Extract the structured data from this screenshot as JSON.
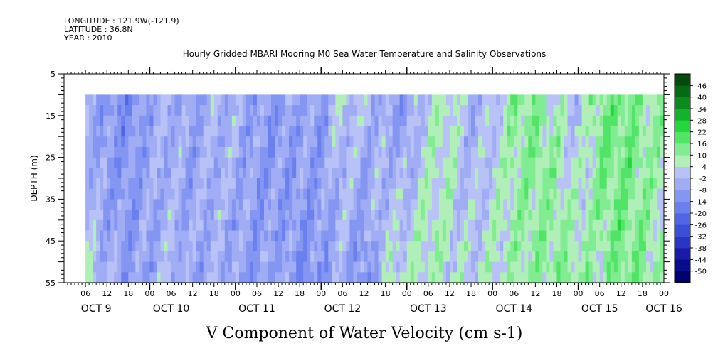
{
  "header": {
    "longitude": "LONGITUDE : 121.9W(-121.9)",
    "latitude": "LATITUDE : 36.8N",
    "year": "YEAR : 2010"
  },
  "chart_data": {
    "type": "heatmap",
    "title": "Hourly Gridded MBARI Mooring M0 Sea Water Temperature and Salinity Observations",
    "xlabel": "V Component of Water Velocity (cm s-1)",
    "ylabel": "DEPTH (m)",
    "x_range_hours": [
      0,
      168
    ],
    "data_start_hour": 6,
    "ylim": [
      5,
      55
    ],
    "y_ticks": [
      5,
      15,
      25,
      35,
      45,
      55
    ],
    "data_depth_range": [
      10,
      55
    ],
    "hour_tick_labels": [
      "06",
      "12",
      "18",
      "00",
      "06",
      "12",
      "18",
      "00",
      "06",
      "12",
      "18",
      "00",
      "06",
      "12",
      "18",
      "00",
      "06",
      "12",
      "18",
      "00",
      "06",
      "12",
      "18",
      "00",
      "06",
      "12",
      "18",
      "00"
    ],
    "hour_tick_positions": [
      6,
      12,
      18,
      24,
      30,
      36,
      42,
      48,
      54,
      60,
      66,
      72,
      78,
      84,
      90,
      96,
      102,
      108,
      114,
      120,
      126,
      132,
      138,
      144,
      150,
      156,
      162,
      168
    ],
    "day_labels": [
      {
        "label": "OCT  9",
        "hour": 9
      },
      {
        "label": "OCT 10",
        "hour": 30
      },
      {
        "label": "OCT 11",
        "hour": 54
      },
      {
        "label": "OCT 12",
        "hour": 78
      },
      {
        "label": "OCT 13",
        "hour": 102
      },
      {
        "label": "OCT 14",
        "hour": 126
      },
      {
        "label": "OCT 15",
        "hour": 150
      },
      {
        "label": "OCT 16",
        "hour": 168
      }
    ],
    "colorbar": {
      "levels": [
        -50,
        -44,
        -38,
        -32,
        -26,
        -20,
        -14,
        -8,
        -2,
        4,
        10,
        16,
        22,
        28,
        34,
        40,
        46
      ],
      "colors": [
        "#00006e",
        "#0a0a8c",
        "#1a1aa8",
        "#2a35c4",
        "#3a4fd8",
        "#5066e6",
        "#6a80ee",
        "#8496f2",
        "#a0acf4",
        "#b8c2f6",
        "#b0f0b8",
        "#82ec92",
        "#52e466",
        "#22d63c",
        "#14b22c",
        "#0c8a1e",
        "#066a14",
        "#044a0c"
      ]
    },
    "day_series": {
      "hours": [
        6,
        12,
        18,
        24,
        30,
        36,
        42,
        48,
        54,
        60,
        66,
        72,
        78,
        84,
        90,
        96,
        102,
        108,
        114,
        120,
        126,
        132,
        138,
        144,
        150,
        156,
        162,
        168
      ],
      "surface_v": [
        -6,
        -10,
        -12,
        -6,
        -4,
        -8,
        -2,
        -4,
        -8,
        -10,
        -6,
        -8,
        2,
        0,
        -6,
        -10,
        4,
        6,
        -4,
        0,
        10,
        12,
        6,
        -2,
        14,
        16,
        10,
        8
      ],
      "bottom_v": [
        4,
        -4,
        -8,
        -6,
        -2,
        -6,
        -4,
        -6,
        -10,
        -6,
        -12,
        -10,
        -4,
        -14,
        4,
        6,
        8,
        4,
        2,
        6,
        8,
        10,
        12,
        10,
        8,
        14,
        12,
        6
      ]
    }
  }
}
